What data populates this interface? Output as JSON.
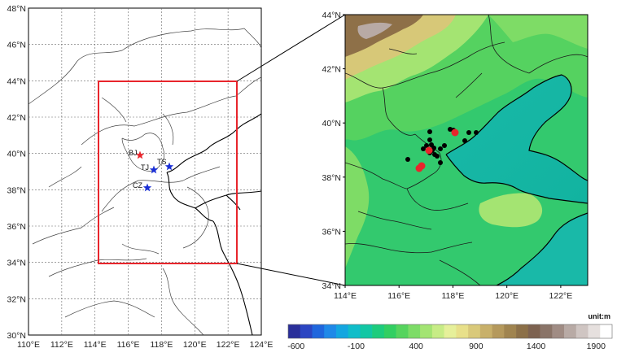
{
  "left_map": {
    "lat_labels": [
      "48°N",
      "46°N",
      "44°N",
      "42°N",
      "40°N",
      "38°N",
      "36°N",
      "34°N",
      "32°N",
      "30°N"
    ],
    "lon_labels": [
      "110°E",
      "112°E",
      "114°E",
      "116°E",
      "118°E",
      "120°E",
      "122°E",
      "124°E"
    ],
    "domain_box_color": "#e8252c",
    "stations": [
      {
        "label": "BJ",
        "color": "#e8252c"
      },
      {
        "label": "TJ",
        "color": "#1a2fd6"
      },
      {
        "label": "TS",
        "color": "#1a2fd6"
      },
      {
        "label": "CZ",
        "color": "#1a2fd6"
      }
    ]
  },
  "right_map": {
    "lat_labels": [
      "44°N",
      "42°N",
      "40°N",
      "38°N",
      "36°N",
      "34°N"
    ],
    "lon_labels": [
      "114°E",
      "116°E",
      "118°E",
      "120°E",
      "122°E"
    ]
  },
  "colorbar": {
    "unit_label": "unit:m",
    "tick_labels": [
      "-600",
      "-100",
      "400",
      "900",
      "1400",
      "1900"
    ],
    "colors": [
      "#2a2f9a",
      "#2b45c2",
      "#1f66dd",
      "#1f89e8",
      "#14a6e0",
      "#10bdc9",
      "#12c7a4",
      "#1dcc7d",
      "#32cf62",
      "#56d45e",
      "#7ddc67",
      "#a3e473",
      "#c7ec86",
      "#e6f09a",
      "#e8e08a",
      "#d9c97a",
      "#c8b06a",
      "#b5995c",
      "#a0844f",
      "#8c7048",
      "#7d6250",
      "#8a7468",
      "#a08c84",
      "#b8aaa5",
      "#cfc5c2",
      "#e6e0de",
      "#ffffff"
    ]
  }
}
